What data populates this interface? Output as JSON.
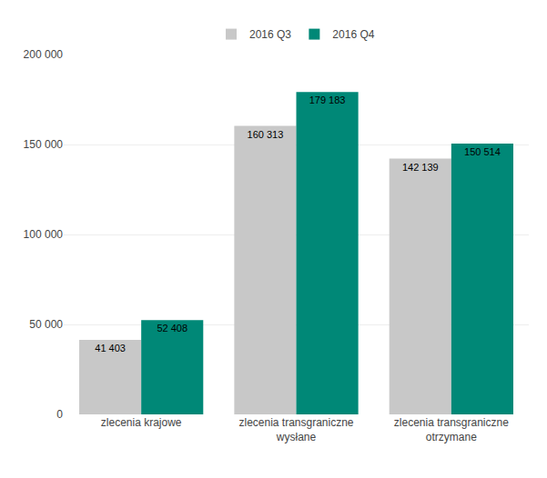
{
  "chart_data": {
    "type": "bar",
    "categories": [
      "zlecenia krajowe",
      "zlecenia transgraniczne\nwysłane",
      "zlecenia transgraniczne\notrzymane"
    ],
    "series": [
      {
        "name": "2016 Q3",
        "color": "#c8c8c8",
        "values": [
          41403,
          160313,
          142139
        ],
        "value_labels": [
          "41 403",
          "160 313",
          "142 139"
        ]
      },
      {
        "name": "2016 Q4",
        "color": "#008877",
        "values": [
          52408,
          179183,
          150514
        ],
        "value_labels": [
          "52 408",
          "179 183",
          "150 514"
        ]
      }
    ],
    "ylim": [
      0,
      200000
    ],
    "yticks": [
      0,
      {
        "value": 50000,
        "label": "50 000"
      },
      {
        "value": 100000,
        "label": "100 000"
      },
      {
        "value": 150000,
        "label": "150 000"
      },
      {
        "value": 200000,
        "label": "200 000"
      }
    ],
    "grid": true,
    "data_labels": true,
    "legend": "top"
  }
}
